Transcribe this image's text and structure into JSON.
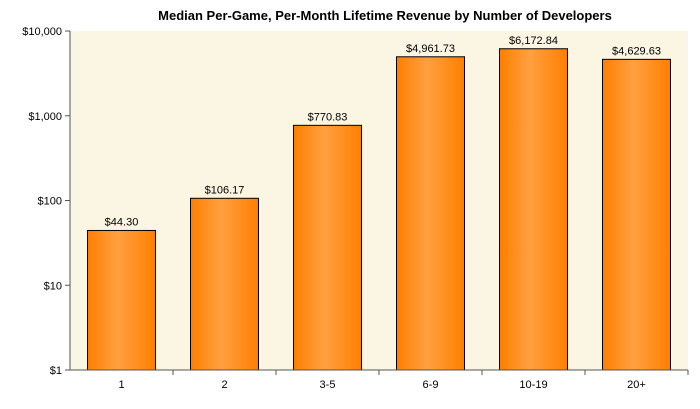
{
  "chart_data": {
    "type": "bar",
    "title": "Median Per-Game, Per-Month Lifetime Revenue by Number of Developers",
    "xlabel": "",
    "ylabel": "",
    "y_scale": "log",
    "ylim": [
      1,
      10000
    ],
    "y_ticks": [
      1,
      10,
      100,
      1000,
      10000
    ],
    "y_tick_labels": [
      "$1",
      "$10",
      "$100",
      "$1,000",
      "$10,000"
    ],
    "categories": [
      "1",
      "2",
      "3-5",
      "6-9",
      "10-19",
      "20+"
    ],
    "values": [
      44.3,
      106.17,
      770.83,
      4961.73,
      6172.84,
      4629.63
    ],
    "value_labels": [
      "$44.30",
      "$106.17",
      "$770.83",
      "$4,961.73",
      "$6,172.84",
      "$4,629.63"
    ],
    "grid": false,
    "legend": "none",
    "colors": {
      "bar_fill": "#ff7f00",
      "bar_highlight": "#ffa040",
      "bar_stroke": "#000000",
      "plot_background": "#fbf6e3",
      "axis": "#555555"
    }
  }
}
